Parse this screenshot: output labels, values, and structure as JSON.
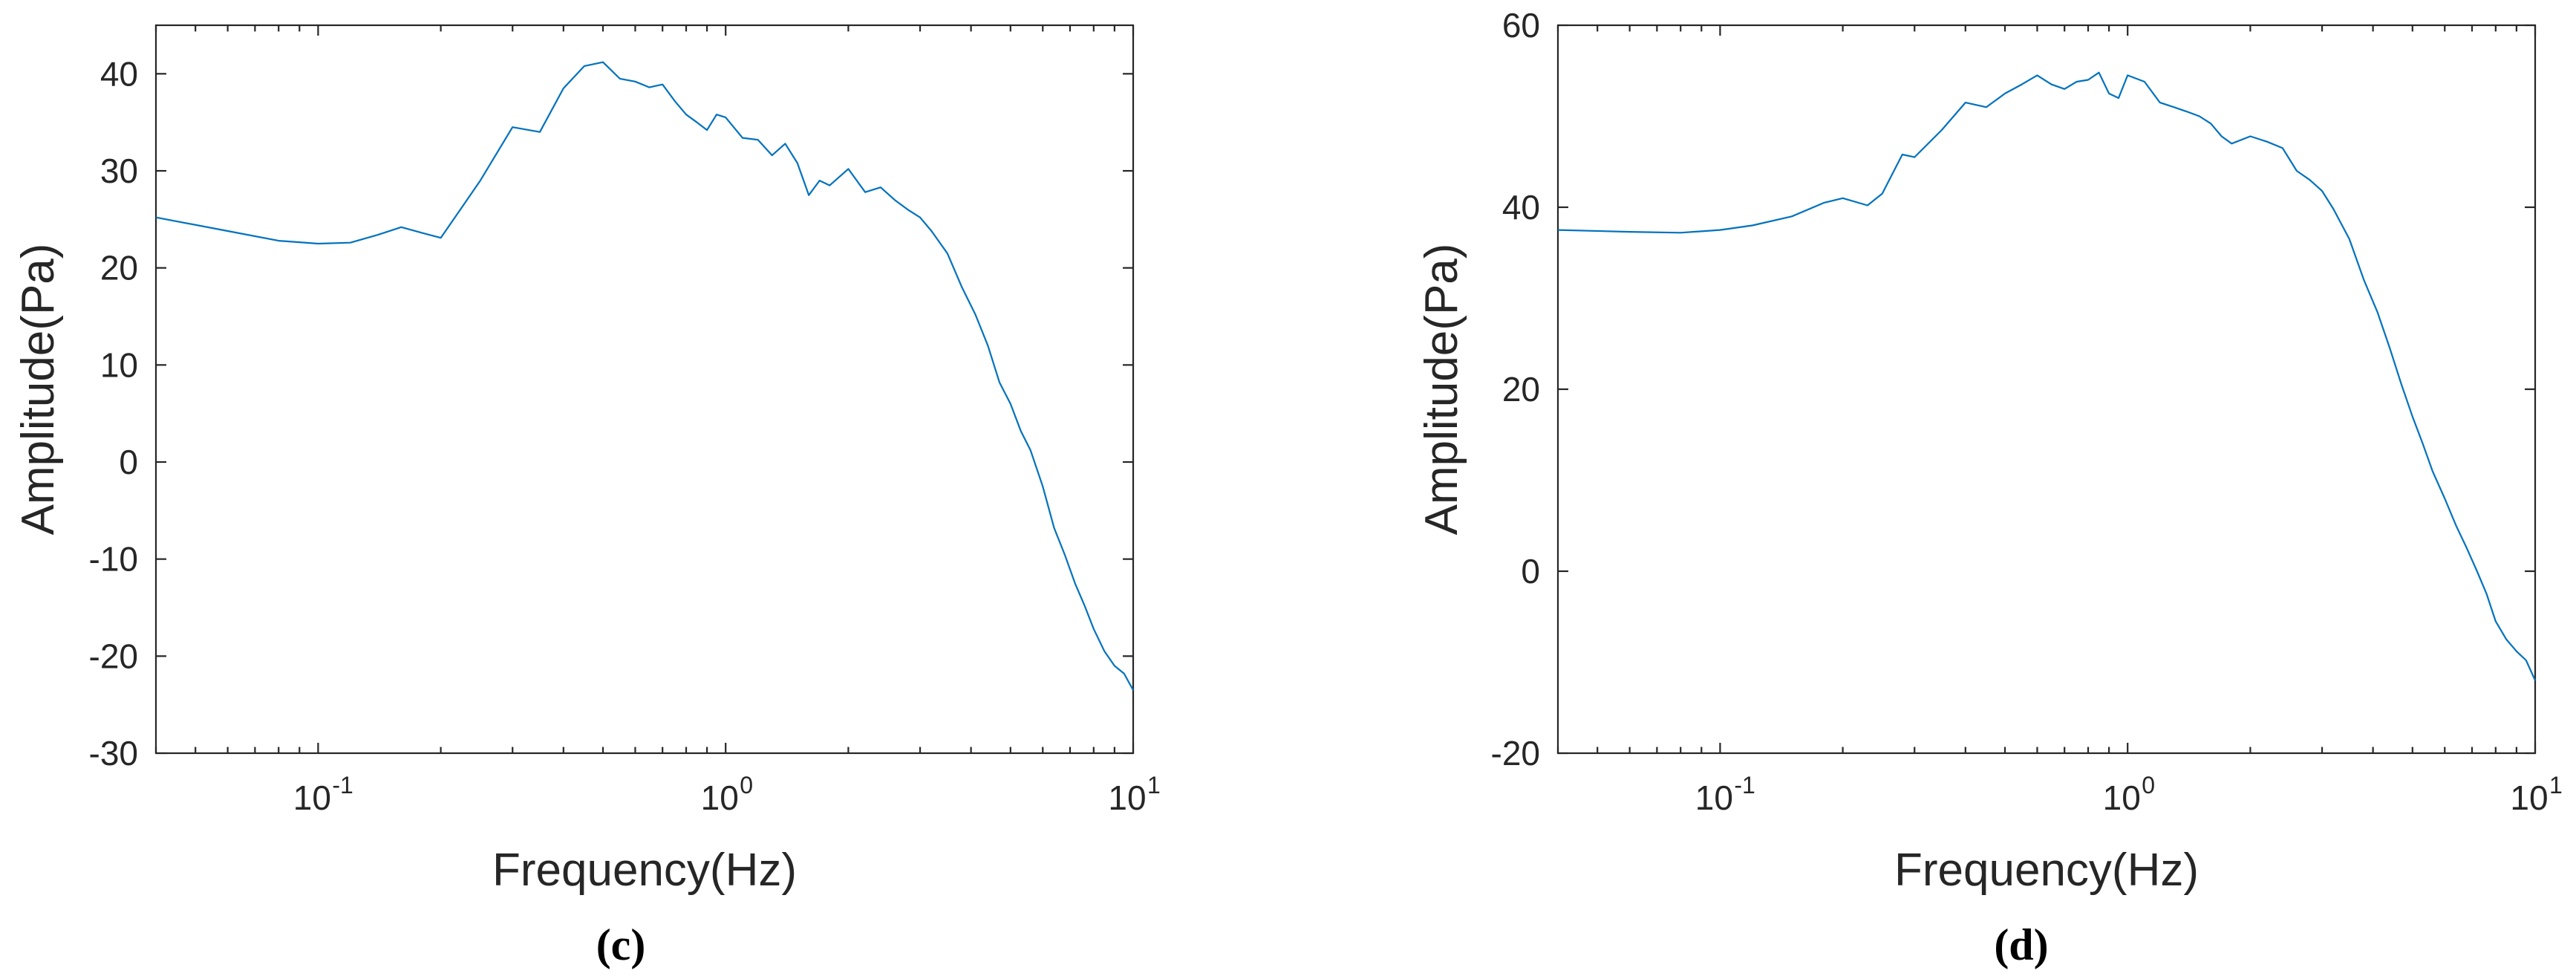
{
  "figure": {
    "panels": [
      "(c)",
      "(d)"
    ]
  },
  "chart_data": [
    {
      "type": "line",
      "panel_label": "(c)",
      "xscale": "log",
      "xlabel": "Frequency(Hz)",
      "ylabel": "Amplitude(Pa)",
      "xlim": [
        0.04,
        10
      ],
      "ylim": [
        -30,
        45
      ],
      "x_ticks": [
        {
          "value": 0.1,
          "base": "10",
          "exp": "-1"
        },
        {
          "value": 1,
          "base": "10",
          "exp": "0"
        },
        {
          "value": 10,
          "base": "10",
          "exp": "1"
        }
      ],
      "y_ticks": [
        -30,
        -20,
        -10,
        0,
        10,
        20,
        30,
        40
      ],
      "color": "#0072BD",
      "series": [
        {
          "name": "Amplitude",
          "x": [
            0.04,
            0.06,
            0.08,
            0.1,
            0.12,
            0.14,
            0.16,
            0.18,
            0.2,
            0.25,
            0.3,
            0.35,
            0.4,
            0.45,
            0.5,
            0.55,
            0.6,
            0.65,
            0.7,
            0.75,
            0.8,
            0.85,
            0.9,
            0.95,
            1.0,
            1.1,
            1.2,
            1.3,
            1.4,
            1.5,
            1.6,
            1.7,
            1.8,
            2.0,
            2.2,
            2.4,
            2.6,
            2.8,
            3.0,
            3.2,
            3.5,
            3.8,
            4.1,
            4.4,
            4.7,
            5.0,
            5.3,
            5.6,
            6.0,
            6.4,
            6.8,
            7.2,
            7.6,
            8.0,
            8.5,
            9.0,
            9.5,
            10.0
          ],
          "y": [
            25.2,
            23.8,
            22.8,
            22.5,
            22.6,
            23.4,
            24.2,
            23.6,
            23.1,
            29.0,
            34.5,
            34.0,
            38.5,
            40.8,
            41.2,
            39.5,
            39.2,
            38.6,
            38.9,
            37.2,
            35.8,
            35.0,
            34.2,
            35.8,
            35.5,
            33.4,
            33.2,
            31.6,
            32.8,
            30.8,
            27.5,
            29.0,
            28.5,
            30.2,
            27.8,
            28.3,
            27.0,
            26.0,
            25.2,
            23.8,
            21.5,
            18.0,
            15.2,
            12.0,
            8.2,
            6.0,
            3.2,
            1.2,
            -2.5,
            -6.8,
            -9.6,
            -12.5,
            -14.8,
            -17.2,
            -19.5,
            -21.0,
            -21.8,
            -23.5
          ]
        }
      ]
    },
    {
      "type": "line",
      "panel_label": "(d)",
      "xscale": "log",
      "xlabel": "Frequency(Hz)",
      "ylabel": "Amplitude(Pa)",
      "xlim": [
        0.04,
        10
      ],
      "ylim": [
        -20,
        60
      ],
      "x_ticks": [
        {
          "value": 0.1,
          "base": "10",
          "exp": "-1"
        },
        {
          "value": 1,
          "base": "10",
          "exp": "0"
        },
        {
          "value": 10,
          "base": "10",
          "exp": "1"
        }
      ],
      "y_ticks": [
        -20,
        0,
        20,
        40,
        60
      ],
      "color": "#0072BD",
      "series": [
        {
          "name": "Amplitude",
          "x": [
            0.04,
            0.06,
            0.08,
            0.1,
            0.12,
            0.15,
            0.18,
            0.2,
            0.23,
            0.25,
            0.28,
            0.3,
            0.35,
            0.4,
            0.45,
            0.5,
            0.55,
            0.6,
            0.65,
            0.7,
            0.75,
            0.8,
            0.85,
            0.9,
            0.95,
            1.0,
            1.1,
            1.2,
            1.3,
            1.4,
            1.5,
            1.6,
            1.7,
            1.8,
            2.0,
            2.2,
            2.4,
            2.6,
            2.8,
            3.0,
            3.2,
            3.5,
            3.8,
            4.1,
            4.4,
            4.7,
            5.0,
            5.3,
            5.6,
            6.0,
            6.4,
            6.8,
            7.2,
            7.6,
            8.0,
            8.5,
            9.0,
            9.5,
            10.0
          ],
          "y": [
            37.5,
            37.3,
            37.2,
            37.5,
            38.0,
            39.0,
            40.5,
            41.0,
            40.2,
            41.5,
            45.8,
            45.5,
            48.5,
            51.5,
            51.0,
            52.5,
            53.5,
            54.5,
            53.5,
            53.0,
            53.8,
            54.0,
            54.8,
            52.5,
            52.0,
            54.5,
            53.8,
            51.5,
            51.0,
            50.5,
            50.0,
            49.2,
            47.8,
            47.0,
            47.8,
            47.2,
            46.5,
            44.0,
            43.0,
            41.8,
            39.8,
            36.5,
            32.0,
            28.5,
            24.5,
            20.5,
            17.0,
            14.0,
            11.0,
            8.0,
            5.0,
            2.5,
            0.0,
            -2.5,
            -5.5,
            -7.5,
            -8.8,
            -9.8,
            -12.0
          ]
        }
      ]
    }
  ]
}
